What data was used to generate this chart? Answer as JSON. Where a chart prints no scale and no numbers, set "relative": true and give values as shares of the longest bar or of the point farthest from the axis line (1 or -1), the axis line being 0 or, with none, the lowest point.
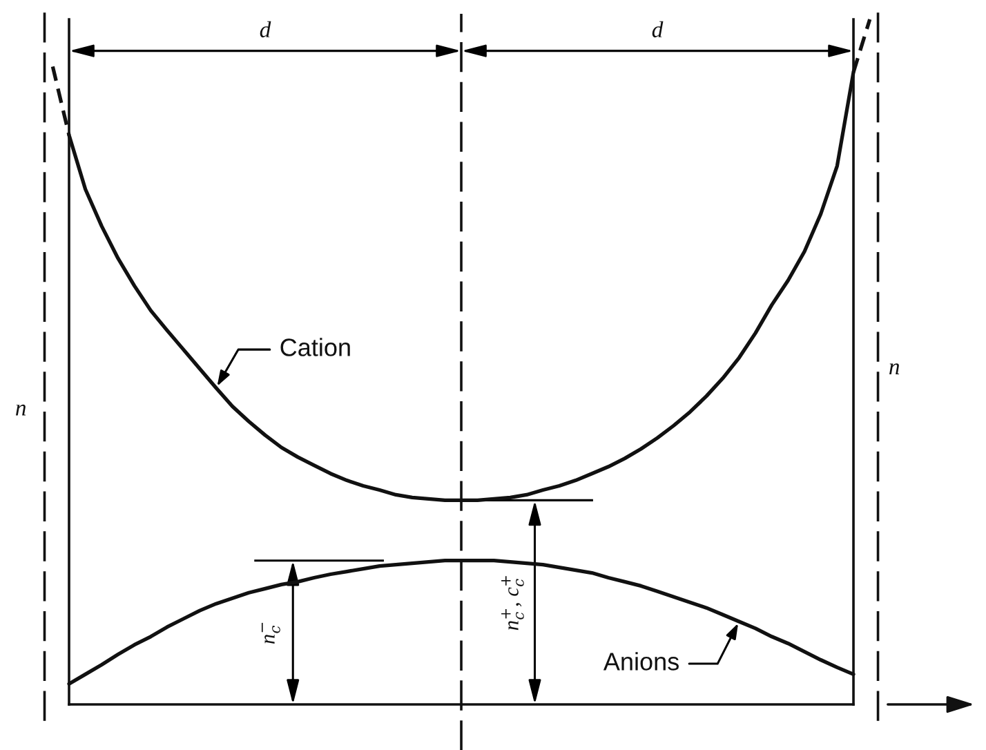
{
  "chart_data": {
    "type": "line",
    "relative": true,
    "categories": [
      null,
      null,
      null,
      null,
      null,
      null,
      null,
      null,
      null,
      null,
      null,
      null,
      null,
      null,
      null,
      null,
      null,
      null,
      null,
      null,
      null,
      null,
      null,
      null,
      null,
      null,
      null,
      null,
      null,
      null,
      null,
      null,
      null,
      null,
      null,
      null,
      null,
      null,
      null,
      null,
      null,
      null,
      null,
      null,
      null,
      null,
      null,
      null,
      null,
      null,
      null
    ],
    "series": [
      {
        "name": "Cation",
        "color": "#111111",
        "values": [
          null,
          0.831,
          0.752,
          0.698,
          0.651,
          0.611,
          0.575,
          0.546,
          0.518,
          0.49,
          0.462,
          0.435,
          0.413,
          0.393,
          0.375,
          0.361,
          0.349,
          0.337,
          0.327,
          0.319,
          0.313,
          0.306,
          0.302,
          0.3,
          0.298,
          0.298,
          0.298,
          0.3,
          0.302,
          0.306,
          0.313,
          0.319,
          0.327,
          0.337,
          0.347,
          0.359,
          0.373,
          0.389,
          0.407,
          0.427,
          0.45,
          0.476,
          0.506,
          0.542,
          0.583,
          0.619,
          0.661,
          0.716,
          0.786,
          0.923,
          null
        ]
      },
      {
        "color": "#111111",
        "line_style": "dashed",
        "values": [
          0.931,
          0.831,
          null,
          null,
          null,
          null,
          null,
          null,
          null,
          null,
          null,
          null,
          null,
          null,
          null,
          null,
          null,
          null,
          null,
          null,
          null,
          null,
          null,
          null,
          null,
          null,
          null,
          null,
          null,
          null,
          null,
          null,
          null,
          null,
          null,
          null,
          null,
          null,
          null,
          null,
          null,
          null,
          null,
          null,
          null,
          null,
          null,
          null,
          null,
          0.923,
          1.0
        ]
      },
      {
        "name": "Anions",
        "color": "#111111",
        "values": [
          null,
          0.03,
          0.044,
          0.058,
          0.073,
          0.087,
          0.099,
          0.113,
          0.125,
          0.137,
          0.147,
          0.155,
          0.163,
          0.169,
          0.175,
          0.179,
          0.185,
          0.19,
          0.194,
          0.198,
          0.202,
          0.204,
          0.206,
          0.208,
          0.21,
          0.21,
          0.21,
          0.21,
          0.208,
          0.206,
          0.204,
          0.2,
          0.196,
          0.192,
          0.185,
          0.179,
          0.173,
          0.165,
          0.157,
          0.149,
          0.141,
          0.131,
          0.121,
          0.111,
          0.099,
          0.089,
          0.077,
          0.065,
          0.054,
          0.044,
          null
        ]
      }
    ],
    "annotations": [
      "d",
      "d",
      "n",
      "n",
      "n$^{−}$$_{c}$",
      "n$^{+}$$_{c}$, c$^{+}$$_{c}$"
    ]
  }
}
